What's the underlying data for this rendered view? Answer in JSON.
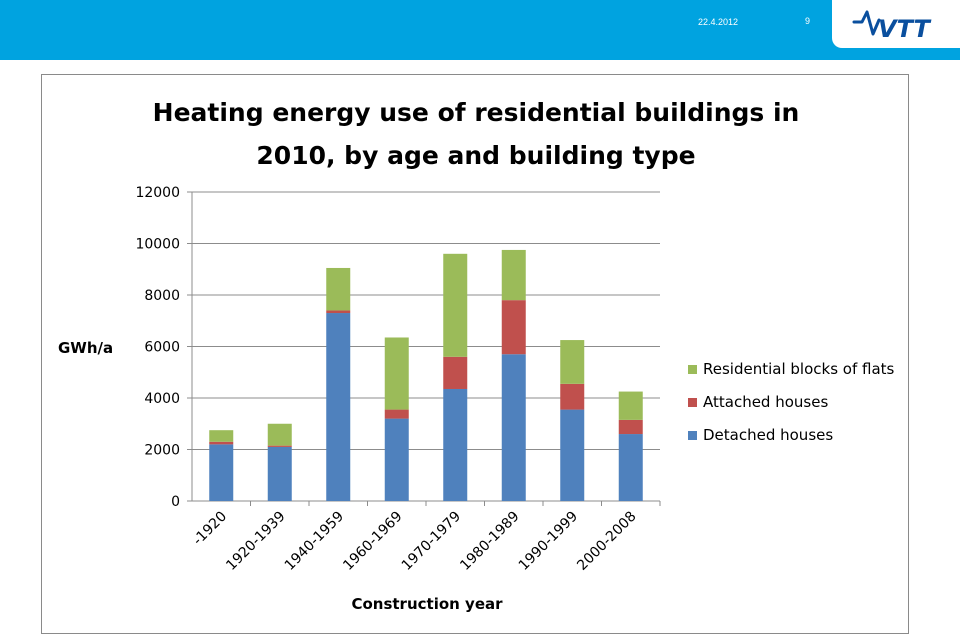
{
  "header": {
    "date": "22.4.2012",
    "page_number": "9",
    "logo_text": "VTT",
    "background_color": "#00a3e0",
    "logo_color": "#0a4f9e"
  },
  "chart_data": {
    "type": "bar",
    "stacked": true,
    "title_lines": [
      "Heating energy use of residential buildings in",
      "2010, by age and building type"
    ],
    "xlabel": "Construction year",
    "ylabel": "GWh/a",
    "ylim": [
      0,
      12000
    ],
    "yticks": [
      0,
      2000,
      4000,
      6000,
      8000,
      10000,
      12000
    ],
    "grid": true,
    "legend_position": "right",
    "categories": [
      "-1920",
      "1920-1939",
      "1940-1959",
      "1960-1969",
      "1970-1979",
      "1980-1989",
      "1990-1999",
      "2000-2008"
    ],
    "series": [
      {
        "name": "Detached houses",
        "color": "#4f81bd",
        "values": [
          2200,
          2100,
          7300,
          3200,
          4350,
          5700,
          3550,
          2600
        ]
      },
      {
        "name": "Attached houses",
        "color": "#c0504d",
        "values": [
          100,
          50,
          100,
          350,
          1250,
          2100,
          1000,
          550
        ]
      },
      {
        "name": "Residential blocks of flats",
        "color": "#9bbb59",
        "values": [
          450,
          850,
          1650,
          2800,
          4000,
          1950,
          1700,
          1100
        ]
      }
    ],
    "legend_order": [
      "Residential blocks of flats",
      "Attached houses",
      "Detached houses"
    ]
  }
}
